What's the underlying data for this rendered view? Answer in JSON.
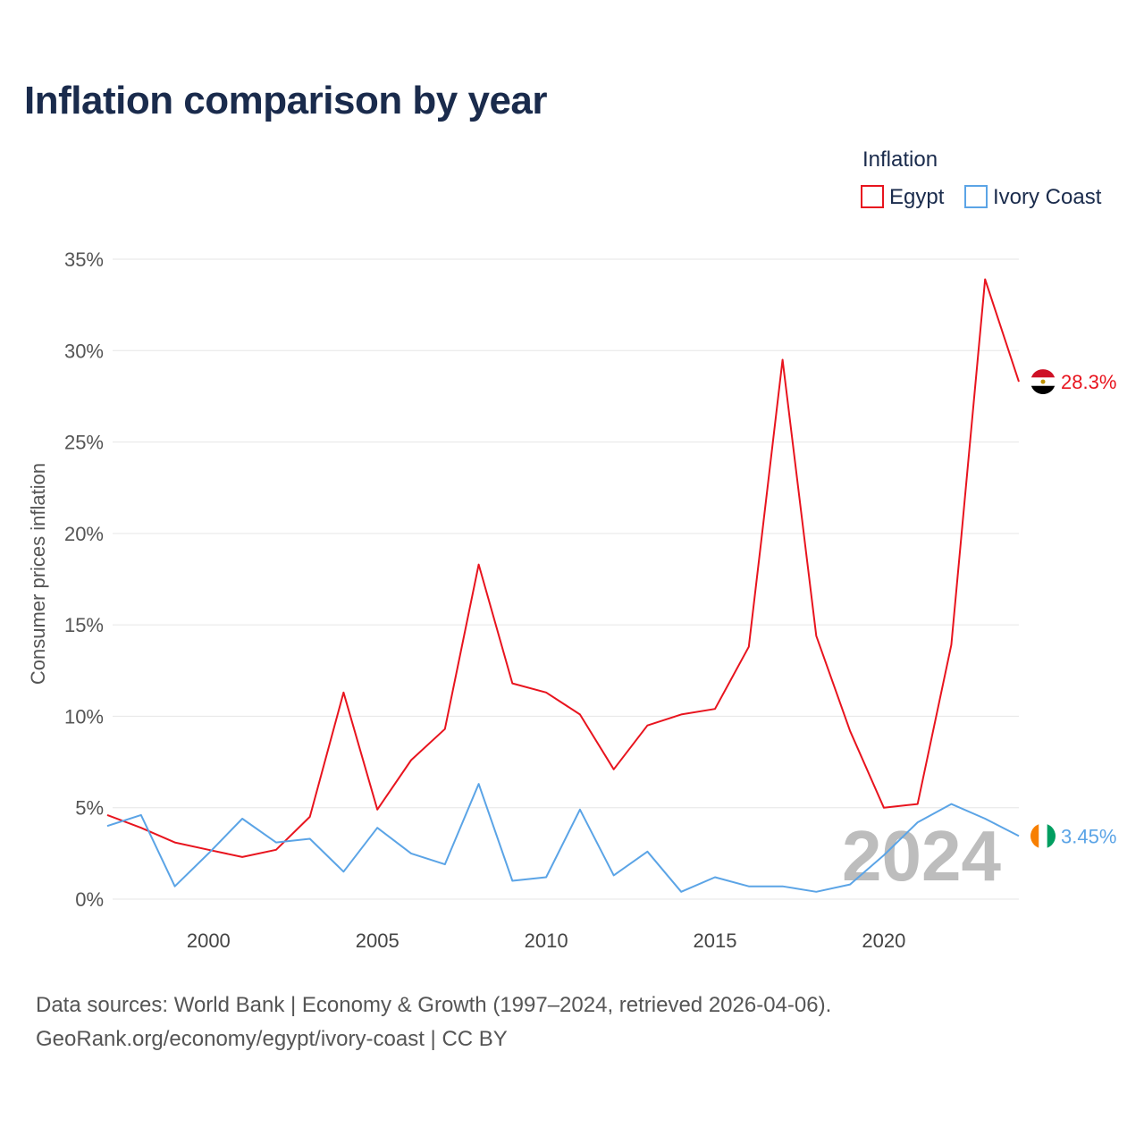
{
  "title": "Inflation comparison by year",
  "legend": {
    "title": "Inflation",
    "entries": [
      {
        "name": "Egypt",
        "color": "#e8141e"
      },
      {
        "name": "Ivory Coast",
        "color": "#5ba4e6"
      }
    ]
  },
  "source": {
    "line1": "Data sources: World Bank | Economy & Growth (1997–2024, retrieved 2026-04-06).",
    "line2": "GeoRank.org/economy/egypt/ivory-coast | CC BY"
  },
  "chart_data": {
    "type": "line",
    "title": "Inflation comparison by year",
    "ylabel": "Consumer prices inflation",
    "xlabel": "",
    "xlim": [
      1997,
      2024
    ],
    "ylim": [
      0,
      35
    ],
    "yticks": [
      0,
      5,
      10,
      15,
      20,
      25,
      30,
      35
    ],
    "ytick_labels": [
      "0%",
      "5%",
      "10%",
      "15%",
      "20%",
      "25%",
      "30%",
      "35%"
    ],
    "xticks": [
      2000,
      2005,
      2010,
      2015,
      2020
    ],
    "xtick_labels": [
      "2000",
      "2005",
      "2010",
      "2015",
      "2020"
    ],
    "year_watermark": "2024",
    "legend_position": "top-right",
    "x": [
      1997,
      1998,
      1999,
      2000,
      2001,
      2002,
      2003,
      2004,
      2005,
      2006,
      2007,
      2008,
      2009,
      2010,
      2011,
      2012,
      2013,
      2014,
      2015,
      2016,
      2017,
      2018,
      2019,
      2020,
      2021,
      2022,
      2023,
      2024
    ],
    "series": [
      {
        "name": "Egypt",
        "color": "#e8141e",
        "end_label": "28.3%",
        "flag_icon": "egypt-flag-icon",
        "values": [
          4.6,
          3.9,
          3.1,
          2.7,
          2.3,
          2.7,
          4.5,
          11.3,
          4.9,
          7.6,
          9.3,
          18.3,
          11.8,
          11.3,
          10.1,
          7.1,
          9.5,
          10.1,
          10.4,
          13.8,
          29.5,
          14.4,
          9.2,
          5.0,
          5.2,
          13.9,
          33.9,
          28.3
        ]
      },
      {
        "name": "Ivory Coast",
        "color": "#5ba4e6",
        "end_label": "3.45%",
        "flag_icon": "ivory-coast-flag-icon",
        "values": [
          4.0,
          4.6,
          0.7,
          2.5,
          4.4,
          3.1,
          3.3,
          1.5,
          3.9,
          2.5,
          1.9,
          6.3,
          1.0,
          1.2,
          4.9,
          1.3,
          2.6,
          0.4,
          1.2,
          0.7,
          0.7,
          0.4,
          0.8,
          2.4,
          4.2,
          5.2,
          4.4,
          3.45
        ]
      }
    ]
  }
}
